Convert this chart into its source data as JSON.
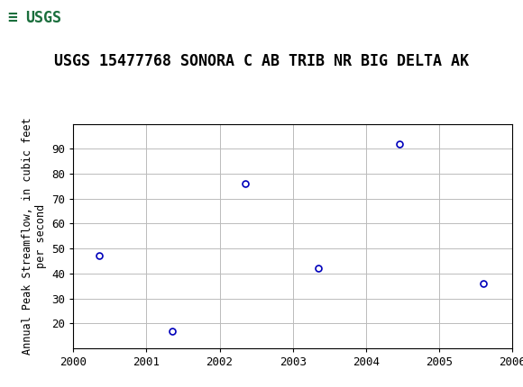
{
  "title": "USGS 15477768 SONORA C AB TRIB NR BIG DELTA AK",
  "ylabel_line1": "Annual Peak Streamflow, in cubic feet",
  "ylabel_line2": "per second",
  "years": [
    2000.35,
    2001.35,
    2002.35,
    2003.35,
    2004.45,
    2005.6
  ],
  "values": [
    47,
    17,
    76,
    42,
    92,
    36
  ],
  "xlim": [
    2000,
    2006
  ],
  "ylim": [
    10,
    100
  ],
  "yticks": [
    20,
    30,
    40,
    50,
    60,
    70,
    80,
    90
  ],
  "xticks": [
    2000,
    2001,
    2002,
    2003,
    2004,
    2005,
    2006
  ],
  "marker_color": "#0000bb",
  "marker_size": 5,
  "grid_color": "#bbbbbb",
  "header_bg": "#1a6e3c",
  "background_color": "#ffffff",
  "title_fontsize": 12,
  "ylabel_fontsize": 8.5,
  "tick_fontsize": 9,
  "font_family": "monospace"
}
